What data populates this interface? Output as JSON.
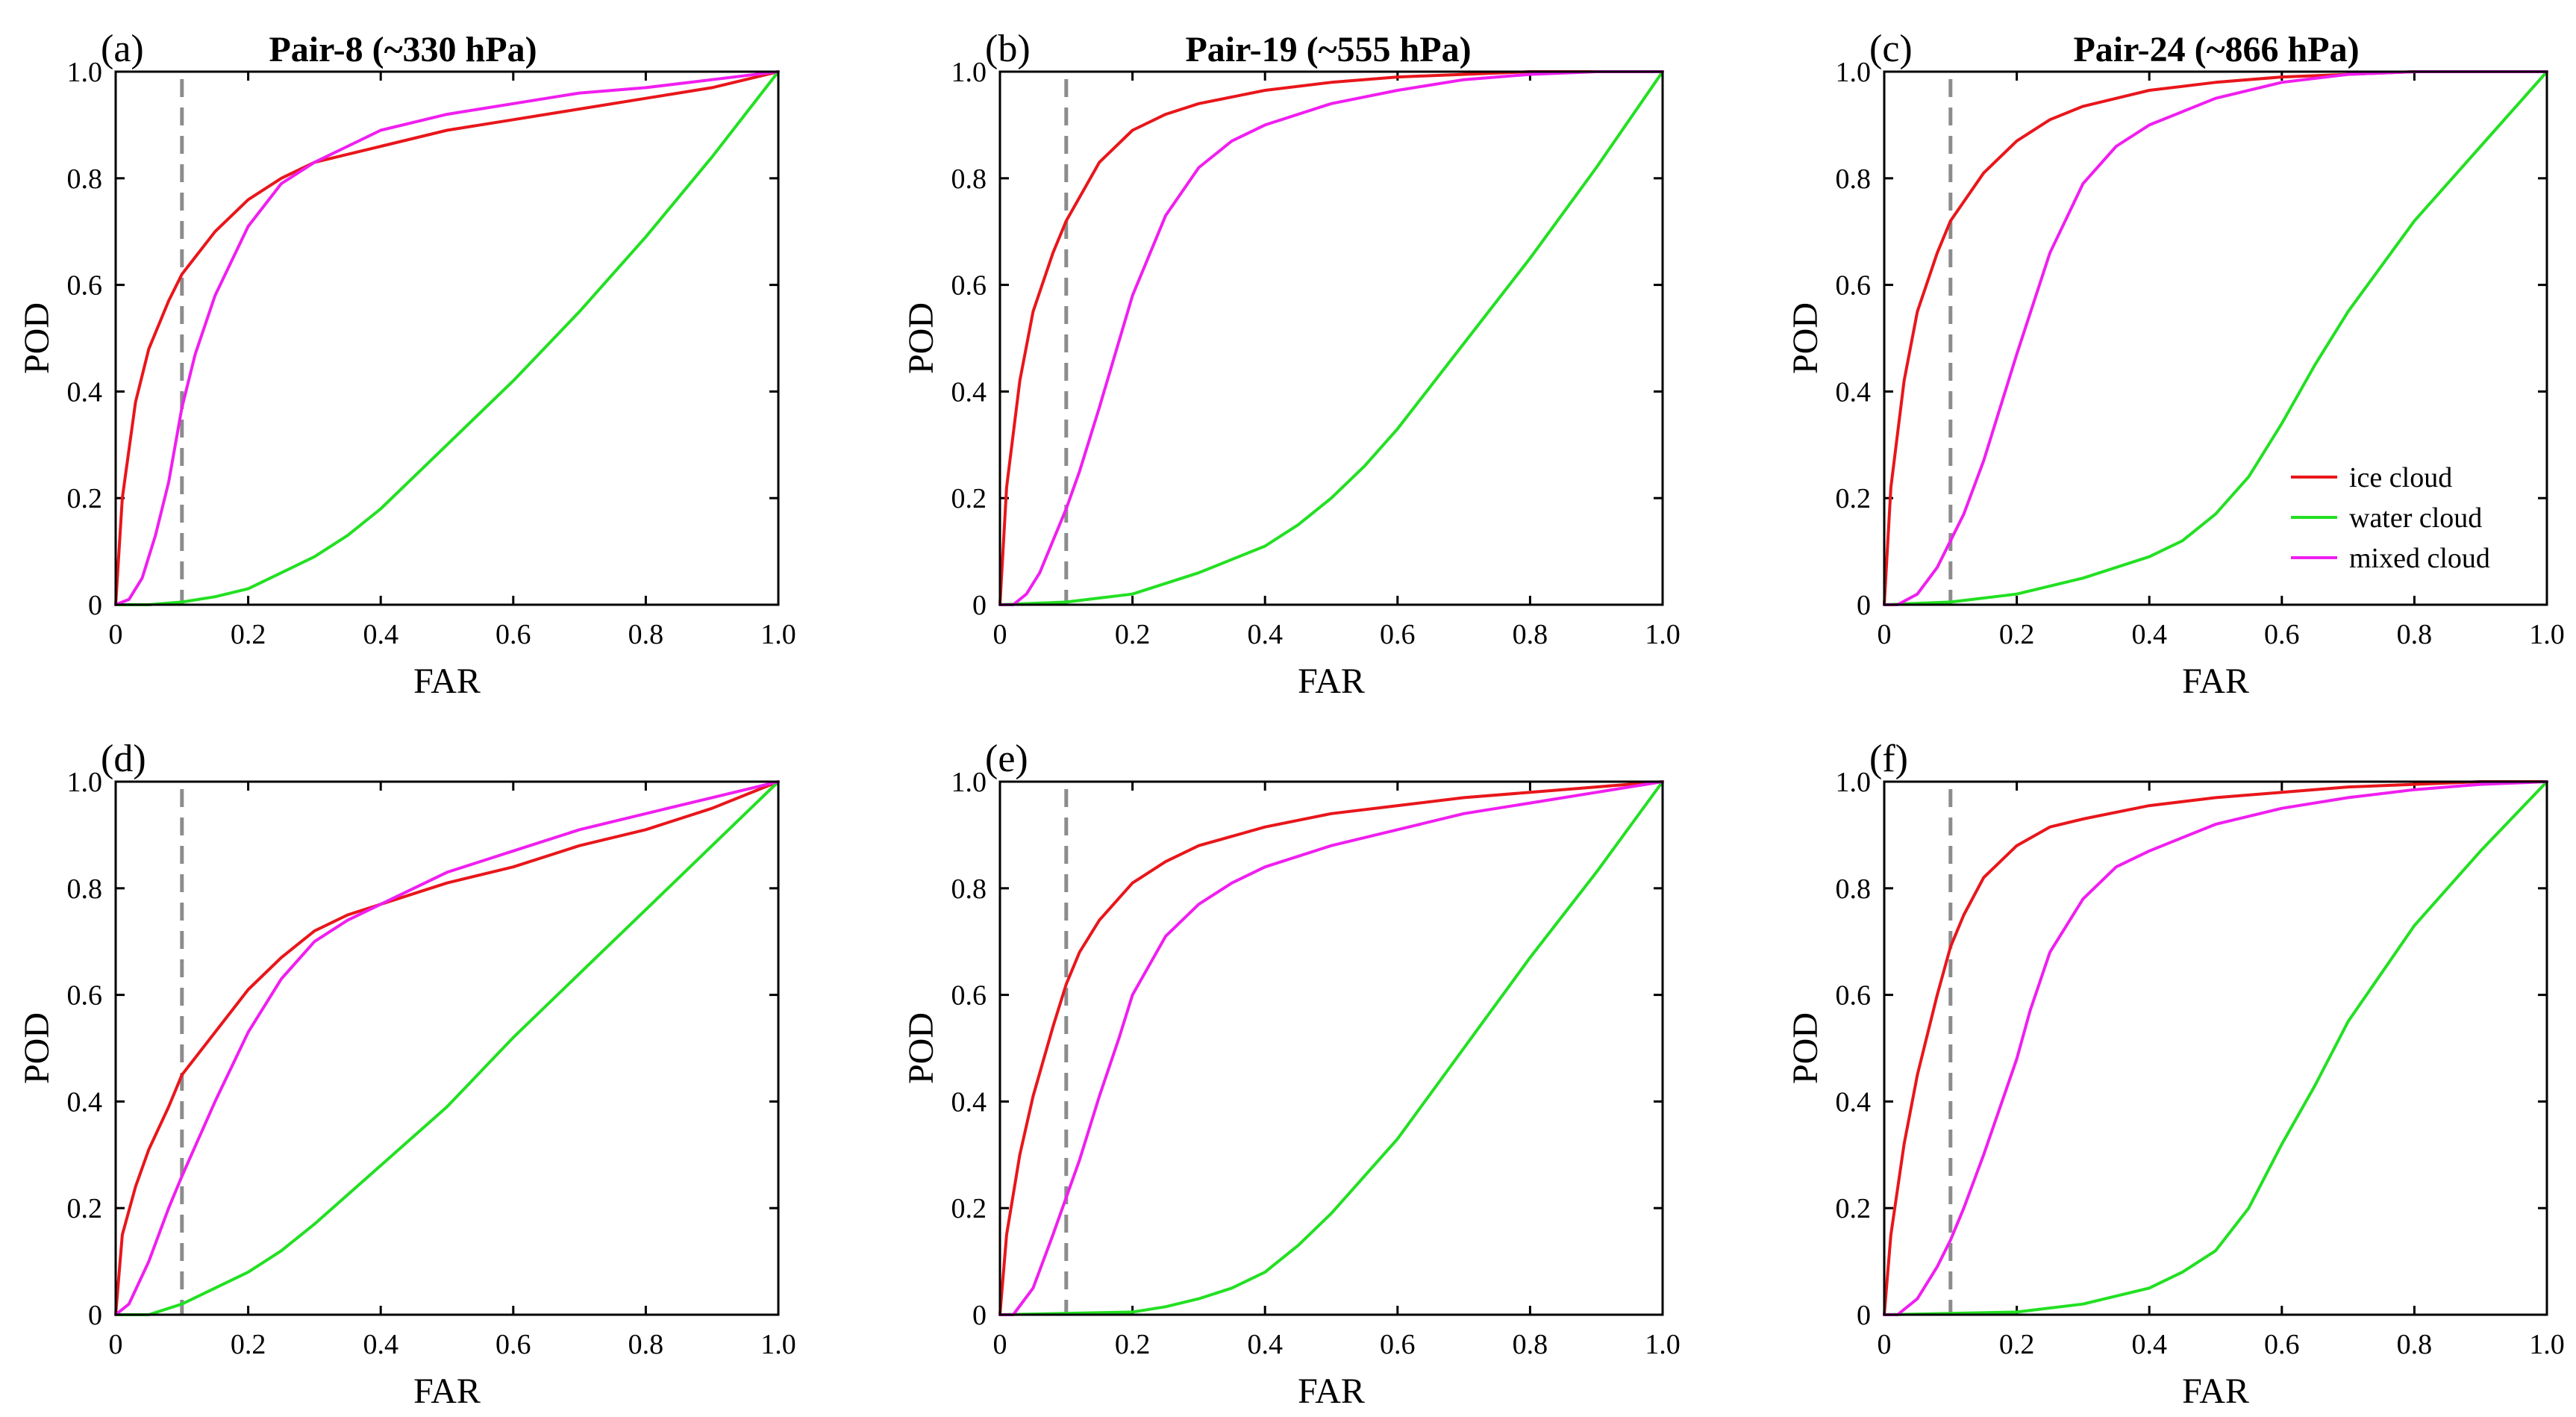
{
  "figure": {
    "legend": {
      "entries": [
        {
          "label": "ice cloud",
          "color": "#e8161b"
        },
        {
          "label": "water cloud",
          "color": "#22e022"
        },
        {
          "label": "mixed cloud",
          "color": "#f01ef0"
        }
      ]
    },
    "reference_line": {
      "x": 0.1,
      "color": "#8c8c8c",
      "style": "dashed"
    }
  },
  "chart_data": [
    {
      "type": "line",
      "panel_label": "(a)",
      "title": "Pair-8 (~330 hPa)",
      "xlabel": "FAR",
      "ylabel": "POD",
      "xlim": [
        0,
        1
      ],
      "ylim": [
        0,
        1
      ],
      "xticks": [
        "0",
        "0.2",
        "0.4",
        "0.6",
        "0.8",
        "1.0"
      ],
      "yticks": [
        "0",
        "0.2",
        "0.4",
        "0.6",
        "0.8",
        "1.0"
      ],
      "series": [
        {
          "name": "ice cloud",
          "x": [
            0,
            0.01,
            0.03,
            0.05,
            0.08,
            0.1,
            0.15,
            0.2,
            0.25,
            0.3,
            0.4,
            0.5,
            0.6,
            0.7,
            0.8,
            0.9,
            1.0
          ],
          "y": [
            0,
            0.2,
            0.38,
            0.48,
            0.57,
            0.62,
            0.7,
            0.76,
            0.8,
            0.83,
            0.86,
            0.89,
            0.91,
            0.93,
            0.95,
            0.97,
            1.0
          ]
        },
        {
          "name": "water cloud",
          "x": [
            0,
            0.05,
            0.1,
            0.15,
            0.2,
            0.25,
            0.3,
            0.35,
            0.4,
            0.5,
            0.6,
            0.7,
            0.8,
            0.9,
            1.0
          ],
          "y": [
            0,
            0.0,
            0.005,
            0.015,
            0.03,
            0.06,
            0.09,
            0.13,
            0.18,
            0.3,
            0.42,
            0.55,
            0.69,
            0.84,
            1.0
          ]
        },
        {
          "name": "mixed cloud",
          "x": [
            0,
            0.02,
            0.04,
            0.06,
            0.08,
            0.1,
            0.12,
            0.15,
            0.2,
            0.25,
            0.3,
            0.35,
            0.4,
            0.5,
            0.6,
            0.7,
            0.8,
            0.9,
            1.0
          ],
          "y": [
            0,
            0.01,
            0.05,
            0.13,
            0.23,
            0.37,
            0.47,
            0.58,
            0.71,
            0.79,
            0.83,
            0.86,
            0.89,
            0.92,
            0.94,
            0.96,
            0.97,
            0.985,
            1.0
          ]
        }
      ]
    },
    {
      "type": "line",
      "panel_label": "(b)",
      "title": "Pair-19 (~555 hPa)",
      "xlabel": "FAR",
      "ylabel": "POD",
      "xlim": [
        0,
        1
      ],
      "ylim": [
        0,
        1
      ],
      "xticks": [
        "0",
        "0.2",
        "0.4",
        "0.6",
        "0.8",
        "1.0"
      ],
      "yticks": [
        "0",
        "0.2",
        "0.4",
        "0.6",
        "0.8",
        "1.0"
      ],
      "series": [
        {
          "name": "ice cloud",
          "x": [
            0,
            0.01,
            0.03,
            0.05,
            0.08,
            0.1,
            0.15,
            0.2,
            0.25,
            0.3,
            0.4,
            0.5,
            0.6,
            0.7,
            0.8,
            0.9,
            1.0
          ],
          "y": [
            0,
            0.22,
            0.42,
            0.55,
            0.66,
            0.72,
            0.83,
            0.89,
            0.92,
            0.94,
            0.965,
            0.98,
            0.99,
            0.995,
            1.0,
            1.0,
            1.0
          ]
        },
        {
          "name": "water cloud",
          "x": [
            0,
            0.1,
            0.2,
            0.3,
            0.4,
            0.45,
            0.5,
            0.55,
            0.6,
            0.7,
            0.8,
            0.9,
            1.0
          ],
          "y": [
            0,
            0.005,
            0.02,
            0.06,
            0.11,
            0.15,
            0.2,
            0.26,
            0.33,
            0.49,
            0.65,
            0.82,
            1.0
          ]
        },
        {
          "name": "mixed cloud",
          "x": [
            0,
            0.02,
            0.04,
            0.06,
            0.08,
            0.1,
            0.12,
            0.15,
            0.2,
            0.25,
            0.3,
            0.35,
            0.4,
            0.5,
            0.6,
            0.7,
            0.8,
            0.9,
            1.0
          ],
          "y": [
            0,
            0.0,
            0.02,
            0.06,
            0.12,
            0.18,
            0.25,
            0.37,
            0.58,
            0.73,
            0.82,
            0.87,
            0.9,
            0.94,
            0.965,
            0.985,
            0.995,
            1.0,
            1.0
          ]
        }
      ]
    },
    {
      "type": "line",
      "panel_label": "(c)",
      "title": "Pair-24 (~866 hPa)",
      "xlabel": "FAR",
      "ylabel": "POD",
      "xlim": [
        0,
        1
      ],
      "ylim": [
        0,
        1
      ],
      "xticks": [
        "0",
        "0.2",
        "0.4",
        "0.6",
        "0.8",
        "1.0"
      ],
      "yticks": [
        "0",
        "0.2",
        "0.4",
        "0.6",
        "0.8",
        "1.0"
      ],
      "legend_location": "bottom-right",
      "series": [
        {
          "name": "ice cloud",
          "x": [
            0,
            0.01,
            0.03,
            0.05,
            0.08,
            0.1,
            0.15,
            0.2,
            0.25,
            0.3,
            0.4,
            0.5,
            0.6,
            0.7,
            0.8,
            0.9,
            1.0
          ],
          "y": [
            0,
            0.22,
            0.42,
            0.55,
            0.66,
            0.72,
            0.81,
            0.87,
            0.91,
            0.935,
            0.965,
            0.98,
            0.99,
            0.995,
            1.0,
            1.0,
            1.0
          ]
        },
        {
          "name": "water cloud",
          "x": [
            0,
            0.1,
            0.2,
            0.3,
            0.4,
            0.45,
            0.5,
            0.55,
            0.6,
            0.65,
            0.7,
            0.8,
            0.9,
            1.0
          ],
          "y": [
            0,
            0.005,
            0.02,
            0.05,
            0.09,
            0.12,
            0.17,
            0.24,
            0.34,
            0.45,
            0.55,
            0.72,
            0.86,
            1.0
          ]
        },
        {
          "name": "mixed cloud",
          "x": [
            0,
            0.02,
            0.05,
            0.08,
            0.1,
            0.12,
            0.15,
            0.2,
            0.25,
            0.3,
            0.35,
            0.4,
            0.5,
            0.6,
            0.7,
            0.8,
            0.9,
            1.0
          ],
          "y": [
            0,
            0.0,
            0.02,
            0.07,
            0.12,
            0.17,
            0.27,
            0.47,
            0.66,
            0.79,
            0.86,
            0.9,
            0.95,
            0.98,
            0.995,
            1.0,
            1.0,
            1.0
          ]
        }
      ]
    },
    {
      "type": "line",
      "panel_label": "(d)",
      "title": "",
      "xlabel": "FAR",
      "ylabel": "POD",
      "xlim": [
        0,
        1
      ],
      "ylim": [
        0,
        1
      ],
      "xticks": [
        "0",
        "0.2",
        "0.4",
        "0.6",
        "0.8",
        "1.0"
      ],
      "yticks": [
        "0",
        "0.2",
        "0.4",
        "0.6",
        "0.8",
        "1.0"
      ],
      "series": [
        {
          "name": "ice cloud",
          "x": [
            0,
            0.01,
            0.03,
            0.05,
            0.08,
            0.1,
            0.15,
            0.2,
            0.25,
            0.3,
            0.35,
            0.4,
            0.5,
            0.6,
            0.7,
            0.8,
            0.9,
            1.0
          ],
          "y": [
            0,
            0.15,
            0.24,
            0.31,
            0.39,
            0.45,
            0.53,
            0.61,
            0.67,
            0.72,
            0.75,
            0.77,
            0.81,
            0.84,
            0.88,
            0.91,
            0.95,
            1.0
          ]
        },
        {
          "name": "water cloud",
          "x": [
            0,
            0.05,
            0.1,
            0.15,
            0.2,
            0.25,
            0.3,
            0.4,
            0.5,
            0.6,
            0.7,
            0.8,
            0.9,
            1.0
          ],
          "y": [
            0,
            0.0,
            0.02,
            0.05,
            0.08,
            0.12,
            0.17,
            0.28,
            0.39,
            0.52,
            0.64,
            0.76,
            0.88,
            1.0
          ]
        },
        {
          "name": "mixed cloud",
          "x": [
            0,
            0.02,
            0.05,
            0.08,
            0.1,
            0.15,
            0.2,
            0.25,
            0.3,
            0.35,
            0.4,
            0.5,
            0.6,
            0.7,
            0.8,
            0.9,
            1.0
          ],
          "y": [
            0,
            0.02,
            0.1,
            0.2,
            0.26,
            0.4,
            0.53,
            0.63,
            0.7,
            0.74,
            0.77,
            0.83,
            0.87,
            0.91,
            0.94,
            0.97,
            1.0
          ]
        }
      ]
    },
    {
      "type": "line",
      "panel_label": "(e)",
      "title": "",
      "xlabel": "FAR",
      "ylabel": "POD",
      "xlim": [
        0,
        1
      ],
      "ylim": [
        0,
        1
      ],
      "xticks": [
        "0",
        "0.2",
        "0.4",
        "0.6",
        "0.8",
        "1.0"
      ],
      "yticks": [
        "0",
        "0.2",
        "0.4",
        "0.6",
        "0.8",
        "1.0"
      ],
      "series": [
        {
          "name": "ice cloud",
          "x": [
            0,
            0.01,
            0.03,
            0.05,
            0.08,
            0.1,
            0.12,
            0.15,
            0.2,
            0.25,
            0.3,
            0.4,
            0.5,
            0.6,
            0.7,
            0.8,
            0.9,
            1.0
          ],
          "y": [
            0,
            0.15,
            0.3,
            0.41,
            0.54,
            0.62,
            0.68,
            0.74,
            0.81,
            0.85,
            0.88,
            0.915,
            0.94,
            0.955,
            0.97,
            0.98,
            0.99,
            1.0
          ]
        },
        {
          "name": "water cloud",
          "x": [
            0,
            0.2,
            0.25,
            0.3,
            0.35,
            0.4,
            0.45,
            0.5,
            0.55,
            0.6,
            0.7,
            0.8,
            0.9,
            1.0
          ],
          "y": [
            0,
            0.005,
            0.015,
            0.03,
            0.05,
            0.08,
            0.13,
            0.19,
            0.26,
            0.33,
            0.5,
            0.67,
            0.83,
            1.0
          ]
        },
        {
          "name": "mixed cloud",
          "x": [
            0,
            0.02,
            0.05,
            0.08,
            0.1,
            0.12,
            0.15,
            0.18,
            0.2,
            0.25,
            0.3,
            0.35,
            0.4,
            0.5,
            0.6,
            0.7,
            0.8,
            0.9,
            1.0
          ],
          "y": [
            0,
            0.0,
            0.05,
            0.15,
            0.22,
            0.29,
            0.41,
            0.52,
            0.6,
            0.71,
            0.77,
            0.81,
            0.84,
            0.88,
            0.91,
            0.94,
            0.96,
            0.98,
            1.0
          ]
        }
      ]
    },
    {
      "type": "line",
      "panel_label": "(f)",
      "title": "",
      "xlabel": "FAR",
      "ylabel": "POD",
      "xlim": [
        0,
        1
      ],
      "ylim": [
        0,
        1
      ],
      "xticks": [
        "0",
        "0.2",
        "0.4",
        "0.6",
        "0.8",
        "1.0"
      ],
      "yticks": [
        "0",
        "0.2",
        "0.4",
        "0.6",
        "0.8",
        "1.0"
      ],
      "series": [
        {
          "name": "ice cloud",
          "x": [
            0,
            0.01,
            0.03,
            0.05,
            0.08,
            0.1,
            0.12,
            0.15,
            0.2,
            0.25,
            0.3,
            0.4,
            0.5,
            0.6,
            0.7,
            0.8,
            0.9,
            1.0
          ],
          "y": [
            0,
            0.15,
            0.32,
            0.45,
            0.6,
            0.69,
            0.75,
            0.82,
            0.88,
            0.915,
            0.93,
            0.955,
            0.97,
            0.98,
            0.99,
            0.995,
            1.0,
            1.0
          ]
        },
        {
          "name": "water cloud",
          "x": [
            0,
            0.2,
            0.3,
            0.4,
            0.45,
            0.5,
            0.55,
            0.6,
            0.65,
            0.7,
            0.8,
            0.9,
            1.0
          ],
          "y": [
            0,
            0.005,
            0.02,
            0.05,
            0.08,
            0.12,
            0.2,
            0.32,
            0.43,
            0.55,
            0.73,
            0.87,
            1.0
          ]
        },
        {
          "name": "mixed cloud",
          "x": [
            0,
            0.02,
            0.05,
            0.08,
            0.1,
            0.12,
            0.15,
            0.2,
            0.22,
            0.25,
            0.3,
            0.35,
            0.4,
            0.5,
            0.6,
            0.7,
            0.8,
            0.9,
            1.0
          ],
          "y": [
            0,
            0.0,
            0.03,
            0.09,
            0.14,
            0.2,
            0.3,
            0.48,
            0.57,
            0.68,
            0.78,
            0.84,
            0.87,
            0.92,
            0.95,
            0.97,
            0.985,
            0.995,
            1.0
          ]
        }
      ]
    }
  ]
}
